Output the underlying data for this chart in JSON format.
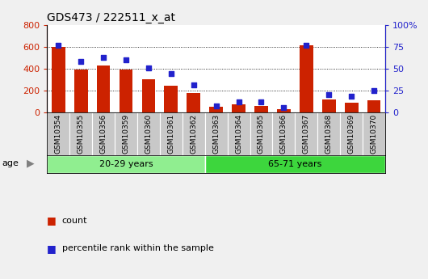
{
  "title": "GDS473 / 222511_x_at",
  "samples": [
    "GSM10354",
    "GSM10355",
    "GSM10356",
    "GSM10359",
    "GSM10360",
    "GSM10361",
    "GSM10362",
    "GSM10363",
    "GSM10364",
    "GSM10365",
    "GSM10366",
    "GSM10367",
    "GSM10368",
    "GSM10369",
    "GSM10370"
  ],
  "counts": [
    600,
    390,
    430,
    395,
    305,
    240,
    175,
    50,
    75,
    55,
    30,
    615,
    115,
    90,
    110
  ],
  "percentiles": [
    77,
    58,
    63,
    60,
    51,
    44,
    31,
    7,
    12,
    12,
    5,
    77,
    20,
    18,
    25
  ],
  "groups": [
    {
      "label": "20-29 years",
      "start": 0,
      "end": 7,
      "color": "#90EE90"
    },
    {
      "label": "65-71 years",
      "start": 7,
      "end": 15,
      "color": "#3DD63D"
    }
  ],
  "bar_color": "#CC2200",
  "dot_color": "#2222CC",
  "ylim_left": [
    0,
    800
  ],
  "ylim_right": [
    0,
    100
  ],
  "yticks_left": [
    0,
    200,
    400,
    600,
    800
  ],
  "yticks_right": [
    0,
    25,
    50,
    75,
    100
  ],
  "yticklabels_left": [
    "0",
    "200",
    "400",
    "600",
    "800"
  ],
  "yticklabels_right": [
    "0",
    "25",
    "50",
    "75",
    "100%"
  ],
  "plot_bg_color": "#ffffff",
  "tick_label_bg": "#c8c8c8",
  "fig_bg": "#f0f0f0",
  "legend_count_label": "count",
  "legend_pct_label": "percentile rank within the sample",
  "age_label": "age"
}
